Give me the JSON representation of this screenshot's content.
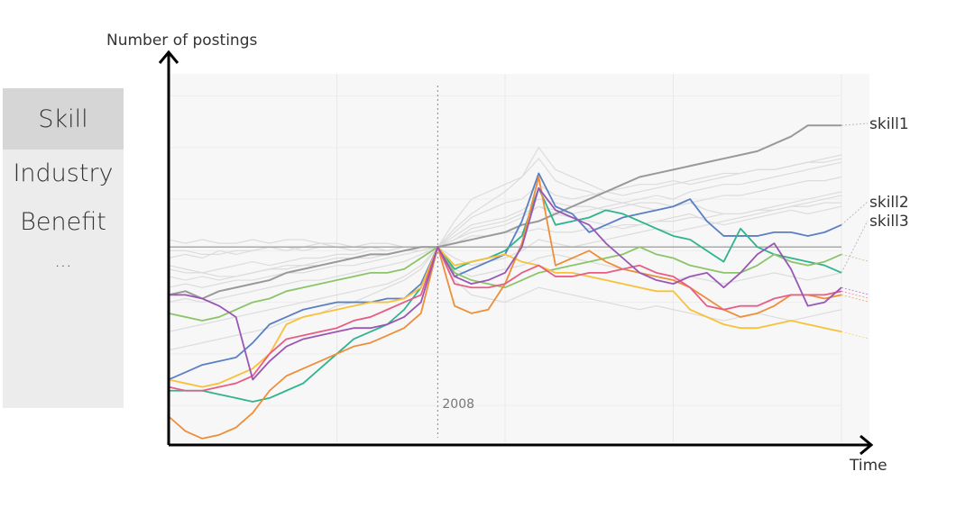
{
  "sidebar": {
    "items": [
      {
        "label": "Skill",
        "active": true
      },
      {
        "label": "Industry",
        "active": false
      },
      {
        "label": "Benefit",
        "active": false
      },
      {
        "label": "...",
        "active": false
      }
    ]
  },
  "chart_data": {
    "type": "line",
    "title": "",
    "xlabel": "Time",
    "ylabel": "Number of postings",
    "x": [
      0,
      1,
      2,
      3,
      4,
      5,
      6,
      7,
      8,
      9,
      10,
      11,
      12,
      13,
      14,
      15,
      16,
      17,
      18,
      19,
      20,
      21,
      22,
      23,
      24,
      25,
      26,
      27,
      28,
      29,
      30,
      31,
      32,
      33,
      34,
      35,
      36,
      37,
      38,
      39,
      40
    ],
    "xlim": [
      0,
      40
    ],
    "ylim": [
      0,
      100
    ],
    "reference_line": {
      "x": 16,
      "label": "2008"
    },
    "baseline": 53,
    "grid": true,
    "colors": {
      "gray_background": "#dcdcdc",
      "skill1": "#999999",
      "blue": "#5b7fc4",
      "teal": "#2eb48e",
      "green": "#8cc46a",
      "yellow": "#f7c13a",
      "orange": "#ee8e3a",
      "pink": "#e85c85",
      "purple": "#9957b3",
      "baseline": "#aaaaaa",
      "panel": "#f7f7f7"
    },
    "series": [
      {
        "name": "skill1",
        "color": "#999999",
        "values": [
          40,
          41,
          39,
          41,
          42,
          43,
          44,
          46,
          47,
          48,
          49,
          50,
          51,
          51,
          52,
          53,
          53,
          54,
          55,
          56,
          57,
          59,
          60,
          62,
          64,
          66,
          68,
          70,
          72,
          73,
          74,
          75,
          76,
          77,
          78,
          79,
          81,
          83,
          86,
          86,
          86
        ]
      },
      {
        "name": "skill2",
        "color": "#5b7fc4",
        "values": [
          17,
          19,
          21,
          22,
          23,
          27,
          32,
          34,
          36,
          37,
          38,
          38,
          38,
          39,
          39,
          43,
          53,
          45,
          47,
          49,
          51,
          60,
          73,
          64,
          62,
          57,
          59,
          61,
          62,
          63,
          64,
          66,
          60,
          56,
          56,
          56,
          57,
          57,
          56,
          57,
          59
        ]
      },
      {
        "name": "skill3",
        "color": "#2eb48e",
        "values": [
          14,
          14,
          14,
          13,
          12,
          11,
          12,
          14,
          16,
          20,
          24,
          28,
          30,
          32,
          36,
          42,
          53,
          47,
          49,
          50,
          52,
          56,
          69,
          59,
          60,
          61,
          63,
          62,
          60,
          58,
          56,
          55,
          52,
          49,
          58,
          53,
          51,
          50,
          49,
          48,
          46
        ]
      },
      {
        "name": "",
        "color": "#8cc46a",
        "values": [
          35,
          34,
          33,
          34,
          36,
          38,
          39,
          41,
          42,
          43,
          44,
          45,
          46,
          46,
          47,
          50,
          53,
          46,
          44,
          43,
          42,
          44,
          46,
          47,
          48,
          49,
          50,
          51,
          53,
          51,
          50,
          48,
          47,
          46,
          46,
          48,
          51,
          49,
          48,
          49,
          51
        ]
      },
      {
        "name": "",
        "color": "#f7c13a",
        "values": [
          17,
          16,
          15,
          16,
          18,
          20,
          24,
          32,
          34,
          35,
          36,
          37,
          38,
          38,
          39,
          42,
          53,
          48,
          49,
          50,
          51,
          49,
          48,
          46,
          46,
          45,
          44,
          43,
          42,
          41,
          41,
          36,
          34,
          32,
          31,
          31,
          32,
          33,
          32,
          31,
          30
        ]
      },
      {
        "name": "",
        "color": "#ee8e3a",
        "values": [
          7,
          3,
          1,
          2,
          4,
          8,
          14,
          18,
          20,
          22,
          24,
          26,
          27,
          29,
          31,
          35,
          53,
          37,
          35,
          36,
          43,
          54,
          72,
          48,
          50,
          52,
          49,
          47,
          46,
          45,
          44,
          42,
          39,
          36,
          34,
          35,
          37,
          40,
          40,
          39,
          40
        ]
      },
      {
        "name": "",
        "color": "#e85c85",
        "values": [
          15,
          14,
          14,
          15,
          16,
          18,
          24,
          28,
          29,
          30,
          31,
          33,
          34,
          36,
          38,
          40,
          53,
          43,
          42,
          42,
          43,
          46,
          48,
          45,
          45,
          46,
          46,
          47,
          48,
          46,
          45,
          42,
          37,
          36,
          37,
          37,
          39,
          40,
          40,
          40,
          41
        ]
      },
      {
        "name": "",
        "color": "#9957b3",
        "values": [
          40,
          40,
          39,
          37,
          34,
          17,
          22,
          26,
          28,
          29,
          30,
          31,
          31,
          32,
          34,
          38,
          53,
          45,
          43,
          44,
          46,
          53,
          69,
          63,
          61,
          59,
          54,
          50,
          46,
          44,
          43,
          45,
          46,
          42,
          46,
          51,
          54,
          47,
          37,
          38,
          42
        ]
      }
    ],
    "background_series": [
      [
        50,
        51,
        50,
        52,
        51,
        52,
        53,
        52,
        53,
        54,
        53,
        52,
        53,
        52,
        53,
        53,
        53,
        55,
        57,
        58,
        59,
        61,
        64,
        63,
        62,
        63,
        64,
        65,
        66,
        67,
        66,
        68,
        69,
        70,
        70,
        71,
        72,
        73,
        74,
        75,
        76
      ],
      [
        48,
        47,
        46,
        47,
        48,
        49,
        48,
        49,
        50,
        50,
        51,
        51,
        52,
        52,
        53,
        53,
        53,
        56,
        59,
        60,
        61,
        63,
        66,
        65,
        64,
        64,
        63,
        64,
        65,
        65,
        64,
        65,
        66,
        67,
        67,
        68,
        69,
        70,
        71,
        71,
        72
      ],
      [
        45,
        44,
        45,
        44,
        45,
        46,
        47,
        47,
        48,
        48,
        49,
        50,
        50,
        51,
        52,
        52,
        53,
        58,
        62,
        65,
        68,
        72,
        80,
        74,
        72,
        70,
        68,
        67,
        68,
        69,
        70,
        71,
        72,
        73,
        73,
        74,
        74,
        75,
        76,
        77,
        78
      ],
      [
        42,
        43,
        42,
        43,
        44,
        44,
        45,
        46,
        46,
        47,
        48,
        48,
        49,
        50,
        51,
        52,
        53,
        50,
        48,
        49,
        50,
        52,
        55,
        54,
        53,
        54,
        55,
        56,
        57,
        58,
        57,
        58,
        59,
        60,
        61,
        62,
        63,
        64,
        65,
        66,
        67
      ],
      [
        52,
        52,
        51,
        51,
        52,
        52,
        53,
        53,
        52,
        53,
        53,
        52,
        53,
        53,
        53,
        53,
        53,
        57,
        61,
        63,
        65,
        66,
        70,
        67,
        66,
        67,
        68,
        69,
        70,
        70,
        71,
        70,
        71,
        72,
        73,
        74,
        74,
        75,
        76,
        76,
        77
      ],
      [
        38,
        39,
        38,
        39,
        40,
        41,
        42,
        43,
        44,
        44,
        45,
        46,
        47,
        48,
        49,
        51,
        53,
        60,
        66,
        68,
        70,
        72,
        77,
        71,
        69,
        68,
        66,
        65,
        64,
        63,
        64,
        65,
        63,
        62,
        62,
        63,
        64,
        65,
        66,
        67,
        68
      ],
      [
        30,
        31,
        32,
        33,
        34,
        35,
        36,
        37,
        38,
        39,
        40,
        41,
        42,
        43,
        45,
        48,
        53,
        47,
        45,
        46,
        47,
        48,
        50,
        51,
        50,
        49,
        48,
        47,
        46,
        45,
        44,
        45,
        44,
        43,
        44,
        45,
        46,
        45,
        44,
        45,
        46
      ],
      [
        25,
        26,
        27,
        28,
        29,
        30,
        31,
        33,
        34,
        35,
        37,
        38,
        40,
        42,
        44,
        47,
        53,
        44,
        40,
        39,
        38,
        40,
        42,
        41,
        40,
        39,
        38,
        37,
        36,
        37,
        36,
        35,
        34,
        33,
        34,
        35,
        34,
        33,
        34,
        35,
        36
      ],
      [
        47,
        46,
        46,
        45,
        45,
        46,
        47,
        48,
        48,
        49,
        50,
        50,
        51,
        51,
        52,
        52,
        53,
        55,
        58,
        59,
        60,
        62,
        64,
        62,
        61,
        60,
        59,
        58,
        59,
        60,
        61,
        62,
        60,
        59,
        60,
        61,
        62,
        63,
        62,
        63,
        64
      ],
      [
        55,
        54,
        55,
        54,
        54,
        55,
        54,
        55,
        55,
        54,
        54,
        53,
        54,
        54,
        53,
        53,
        53,
        54,
        56,
        56,
        57,
        57,
        58,
        57,
        57,
        58,
        58,
        59,
        59,
        60,
        60,
        61,
        61,
        62,
        62,
        63,
        63,
        64,
        64,
        65,
        65
      ]
    ]
  }
}
